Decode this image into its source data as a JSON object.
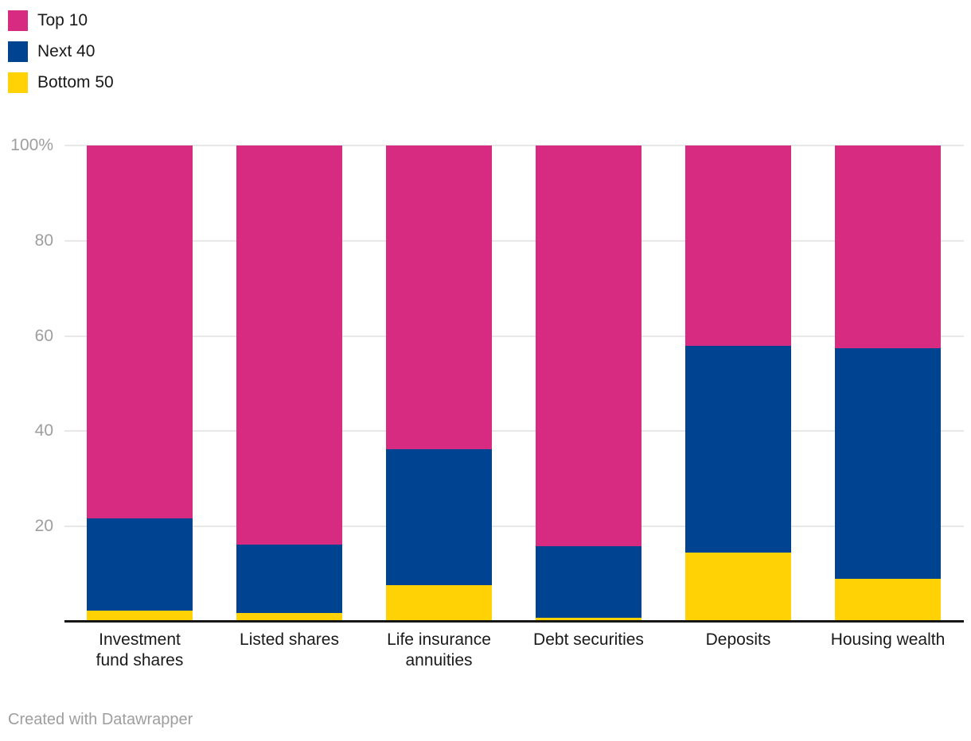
{
  "colors": {
    "top10": "#d62b80",
    "next40": "#004390",
    "bottom50": "#ffd205",
    "gridline": "#e8e8e8",
    "axis_line": "#161616",
    "tick_text": "#9e9e9e",
    "label_text": "#1a1a1a",
    "footer_text": "#9e9e9e"
  },
  "legend": {
    "position": "top-left",
    "items": [
      {
        "label": "Top 10",
        "color": "#d62b80"
      },
      {
        "label": "Next 40",
        "color": "#004390"
      },
      {
        "label": "Bottom 50",
        "color": "#ffd205"
      }
    ]
  },
  "y_axis": {
    "ticks": [
      {
        "label": "100%",
        "value": 100
      },
      {
        "label": "80",
        "value": 80
      },
      {
        "label": "60",
        "value": 60
      },
      {
        "label": "40",
        "value": 40
      },
      {
        "label": "20",
        "value": 20
      }
    ]
  },
  "chart_data": {
    "type": "bar",
    "stacked": true,
    "unit": "%",
    "title": "",
    "xlabel": "",
    "ylabel": "",
    "ylim": [
      0,
      100
    ],
    "grid": "horizontal",
    "legend_position": "top-left",
    "categories": [
      "Investment fund shares",
      "Listed shares",
      "Life insurance annuities",
      "Debt securities",
      "Deposits",
      "Housing wealth"
    ],
    "category_labels": [
      "Investment\nfund shares",
      "Listed shares",
      "Life insurance\nannuities",
      "Debt securities",
      "Deposits",
      "Housing wealth"
    ],
    "series": [
      {
        "name": "Top 10",
        "color": "#d62b80",
        "values": [
          78.3,
          83.8,
          63.7,
          84.1,
          42.0,
          42.6
        ]
      },
      {
        "name": "Next 40",
        "color": "#004390",
        "values": [
          19.4,
          14.4,
          28.6,
          15.0,
          43.4,
          48.4
        ]
      },
      {
        "name": "Bottom 50",
        "color": "#ffd205",
        "values": [
          2.3,
          1.8,
          7.7,
          0.9,
          14.6,
          9.0
        ]
      }
    ]
  },
  "footer": {
    "text": "Created with Datawrapper"
  }
}
